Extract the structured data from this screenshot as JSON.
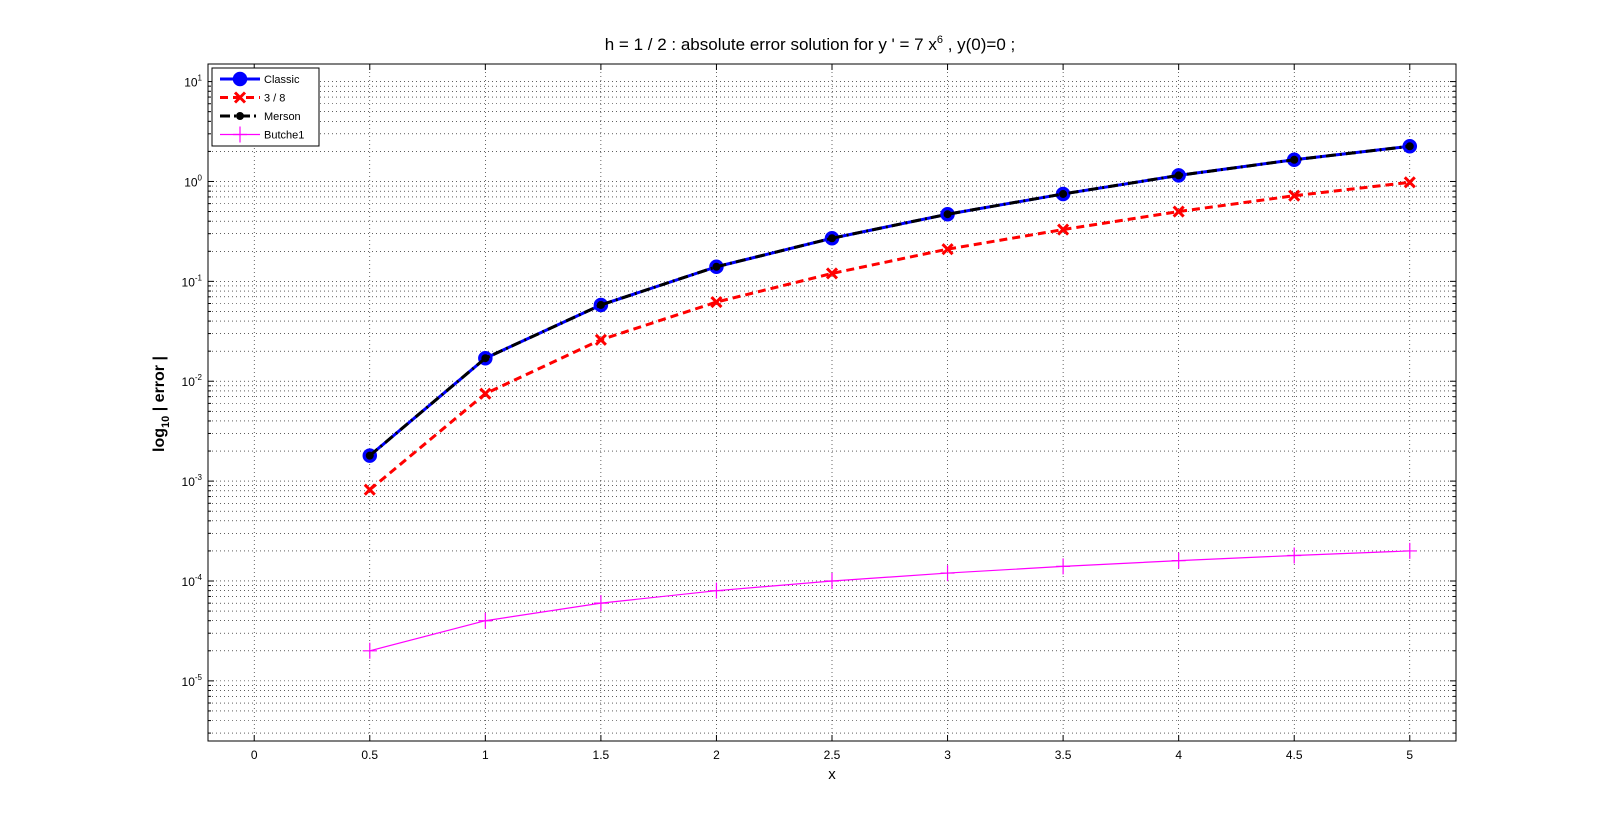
{
  "chart_data": {
    "type": "line",
    "title": {
      "prefix": "h = 1 / 2 :    absolute error solution for    y ' = 7 x",
      "superscript": "6",
      "suffix": " ,   y(0)=0 ;"
    },
    "xlabel": "x",
    "ylabel": {
      "main": "log",
      "subscript": "10",
      "tail": " | error |"
    },
    "x_ticks": [
      "0",
      "0.5",
      "1",
      "1.5",
      "2",
      "2.5",
      "3",
      "3.5",
      "4",
      "4.5",
      "5"
    ],
    "x_tick_values": [
      0,
      0.5,
      1,
      1.5,
      2,
      2.5,
      3,
      3.5,
      4,
      4.5,
      5
    ],
    "xlim": [
      -0.2,
      5.2
    ],
    "y_scale": "log",
    "ylim": [
      2.5e-06,
      15
    ],
    "y_ticks": [
      {
        "base": "10",
        "exp": "1",
        "value": 10
      },
      {
        "base": "10",
        "exp": "0",
        "value": 1
      },
      {
        "base": "10",
        "exp": "-1",
        "value": 0.1
      },
      {
        "base": "10",
        "exp": "-2",
        "value": 0.01
      },
      {
        "base": "10",
        "exp": "-3",
        "value": 0.001
      },
      {
        "base": "10",
        "exp": "-4",
        "value": 0.0001
      },
      {
        "base": "10",
        "exp": "-5",
        "value": 1e-05
      }
    ],
    "grid": true,
    "legend_position": "top-left",
    "x": [
      0.5,
      1,
      1.5,
      2,
      2.5,
      3,
      3.5,
      4,
      4.5,
      5
    ],
    "series": [
      {
        "name": "Classic",
        "color": "#0000ff",
        "marker": "circle",
        "line": "solid",
        "values": [
          0.0018,
          0.017,
          0.058,
          0.14,
          0.27,
          0.47,
          0.75,
          1.15,
          1.65,
          2.25
        ]
      },
      {
        "name": "3 / 8",
        "color": "#ff0000",
        "marker": "x",
        "line": "dashed",
        "values": [
          0.00082,
          0.0075,
          0.026,
          0.062,
          0.12,
          0.21,
          0.33,
          0.5,
          0.72,
          0.98
        ]
      },
      {
        "name": "Merson",
        "color": "#000000",
        "marker": "dot",
        "line": "dashdot",
        "values": [
          0.0018,
          0.017,
          0.058,
          0.14,
          0.27,
          0.47,
          0.75,
          1.15,
          1.65,
          2.25
        ]
      },
      {
        "name": "Butche1",
        "color": "#ff00ff",
        "marker": "plus",
        "line": "solid",
        "values": [
          2e-05,
          4e-05,
          6e-05,
          8e-05,
          0.0001,
          0.00012,
          0.00014,
          0.00016,
          0.00018,
          0.0002
        ]
      }
    ]
  }
}
